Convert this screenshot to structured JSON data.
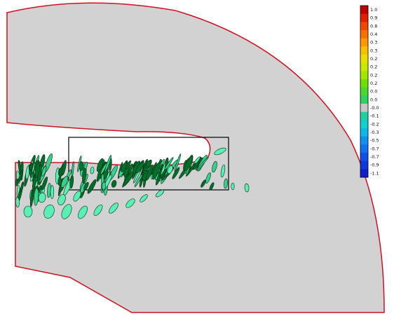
{
  "chart_data": {
    "type": "heatmap",
    "title": "",
    "xlabel": "",
    "ylabel": "",
    "grid": false,
    "legend_placement": "right",
    "colorbar": {
      "range": [
        -1.0,
        1.0
      ],
      "tick_labels": [
        "1.0",
        "0.9",
        "0.8",
        "0.4",
        "0.3",
        "0.3",
        "0.2",
        "0.2",
        "0.2",
        "0.2",
        "0.0",
        "0.0",
        "-0.0",
        "-0.1",
        "-0.2",
        "-0.3",
        "-0.5",
        "-0.7",
        "-0.7",
        "-0.9",
        "-1.1"
      ],
      "colors": [
        "#c00000",
        "#e02000",
        "#f04800",
        "#f87000",
        "#fc9800",
        "#f8c000",
        "#e8e000",
        "#c8e800",
        "#a0e800",
        "#70e000",
        "#48d830",
        "#30d060",
        "#c8c8c8",
        "#20d0a0",
        "#10d0d0",
        "#10b8e8",
        "#1090f0",
        "#1070f0",
        "#1050e8",
        "#1038d8",
        "#1020c8"
      ]
    },
    "domain": {
      "fill": "#d2d2d2",
      "outline": "#d01020",
      "inset_box": "#000000"
    },
    "field_colors": {
      "dark": "#006f2a",
      "mid": "#35d28f",
      "light": "#59f0b5"
    }
  }
}
